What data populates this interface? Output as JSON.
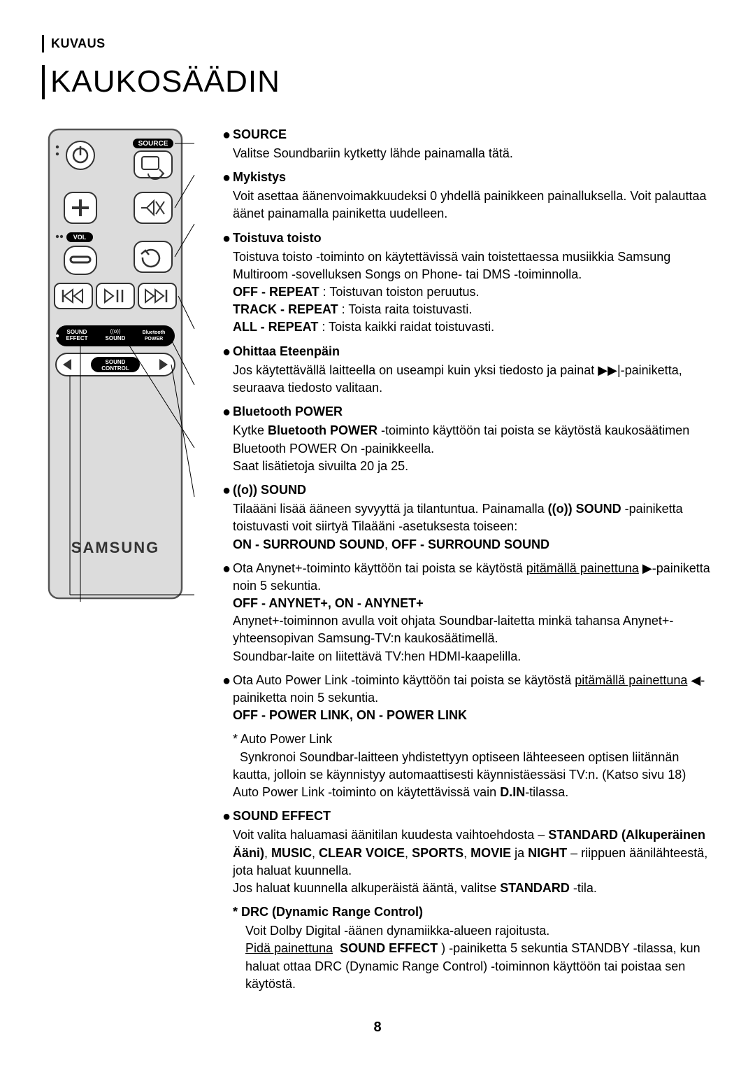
{
  "page": {
    "kuvaus": "KUVAUS",
    "title": "KAUKOSÄÄDIN",
    "number": "8"
  },
  "remote": {
    "labels": {
      "source": "SOURCE",
      "vol": "VOL",
      "sound_effect": "SOUND\nEFFECT",
      "surround_sound": "SOUND",
      "bt_power": "Bluetooth\nPOWER",
      "sound_control": "SOUND\nCONTROL",
      "brand": "SAMSUNG"
    },
    "colors": {
      "body": "#dcdcdc",
      "body_stroke": "#555555",
      "button": "#ffffff",
      "button_stroke": "#333333",
      "black_pill": "#000000",
      "text_dark": "#000000",
      "text_light": "#ffffff"
    }
  },
  "sections": [
    {
      "key": "source",
      "head": "SOURCE",
      "body_html": "Valitse Soundbariin kytketty lähde painamalla tätä."
    },
    {
      "key": "mute",
      "head": "Mykistys",
      "body_html": "Voit asettaa äänenvoimakkuudeksi 0 yhdellä painikkeen painalluksella. Voit palauttaa äänet painamalla painiketta uudelleen."
    },
    {
      "key": "repeat",
      "head": "Toistuva toisto",
      "body_html": "Toistuva toisto -toiminto on käytettävissä vain toistettaessa musiikkia Samsung Multiroom -sovelluksen Songs on Phone- tai DMS -toiminnolla.<br><b>OFF - REPEAT</b> : Toistuvan toiston peruutus.<br><b>TRACK - REPEAT</b> : Toista raita toistuvasti.<br><b>ALL - REPEAT</b> : Toista kaikki raidat toistuvasti."
    },
    {
      "key": "skip",
      "head": "Ohittaa Eteenpäin",
      "body_html": "Jos käytettävällä laitteella on useampi kuin yksi tiedosto ja painat ▶▶|-painiketta, seuraava tiedosto valitaan."
    },
    {
      "key": "btpower",
      "head": "Bluetooth POWER",
      "body_html": "Kytke <b>Bluetooth POWER</b> -toiminto käyttöön tai poista se käytöstä kaukosäätimen Bluetooth POWER On -painikkeella.<br>Saat lisätietoja sivuilta 20 ja 25."
    },
    {
      "key": "surround",
      "head": "((o)) SOUND",
      "body_html": "Tilaääni lisää ääneen syvyyttä ja tilantuntua. Painamalla <b>((o)) SOUND</b> -painiketta toistuvasti voit siirtyä Tilaääni -asetuksesta toiseen:<br><b>ON - SURROUND SOUND</b>, <b>OFF - SURROUND SOUND</b>"
    },
    {
      "key": "anynet",
      "head": "",
      "body_html": "Ota Anynet+-toiminto käyttöön tai poista se käytöstä <span class='u'>pitämällä painettuna</span> ▶-painiketta noin 5 sekuntia.<br><b>OFF - ANYNET+, ON - ANYNET+</b><br>Anynet+-toiminnon avulla voit ohjata Soundbar-laitetta minkä tahansa Anynet+-yhteensopivan Samsung-TV:n kaukosäätimellä.<br>Soundbar-laite on liitettävä TV:hen HDMI-kaapelilla."
    },
    {
      "key": "powerlink",
      "head": "",
      "body_html": "Ota Auto Power Link -toiminto käyttöön tai poista se käytöstä <span class='u'>pitämällä painettuna</span> ◀-painiketta noin 5 sekuntia.<br><b>OFF - POWER LINK, ON - POWER LINK</b>"
    },
    {
      "key": "powerlink_note",
      "head": "",
      "indent": true,
      "body_html": "* Auto Power Link<br>&nbsp;&nbsp;Synkronoi Soundbar-laitteen yhdistettyyn optiseen lähteeseen optisen liitännän kautta, jolloin se käynnistyy automaattisesti käynnistäessäsi TV:n. (Katso sivu 18) Auto Power Link -toiminto on käytettävissä vain <b>D.IN</b>-tilassa."
    },
    {
      "key": "soundeffect",
      "head": "SOUND EFFECT",
      "body_html": "Voit valita haluamasi äänitilan kuudesta vaihtoehdosta – <b>STANDARD (Alkuperäinen Ääni)</b>, <b>MUSIC</b>, <b>CLEAR VOICE</b>, <b>SPORTS</b>, <b>MOVIE</b> ja <b>NIGHT</b> – riippuen äänilähteestä, jota haluat kuunnella.<br>Jos haluat kuunnella alkuperäistä ääntä, valitse <b>STANDARD</b> -tila."
    },
    {
      "key": "drc",
      "head": "* DRC (Dynamic Range Control)",
      "indent": true,
      "body_html": "Voit Dolby Digital -äänen dynamiikka-alueen rajoitusta.<br><span class='u'>Pidä painettuna</span> &nbsp;<b>SOUND EFFECT</b> ) -painiketta 5 sekuntia STANDBY -tilassa, kun haluat ottaa DRC (Dynamic Range Control) -toiminnon käyttöön tai poistaa sen käytöstä."
    }
  ]
}
